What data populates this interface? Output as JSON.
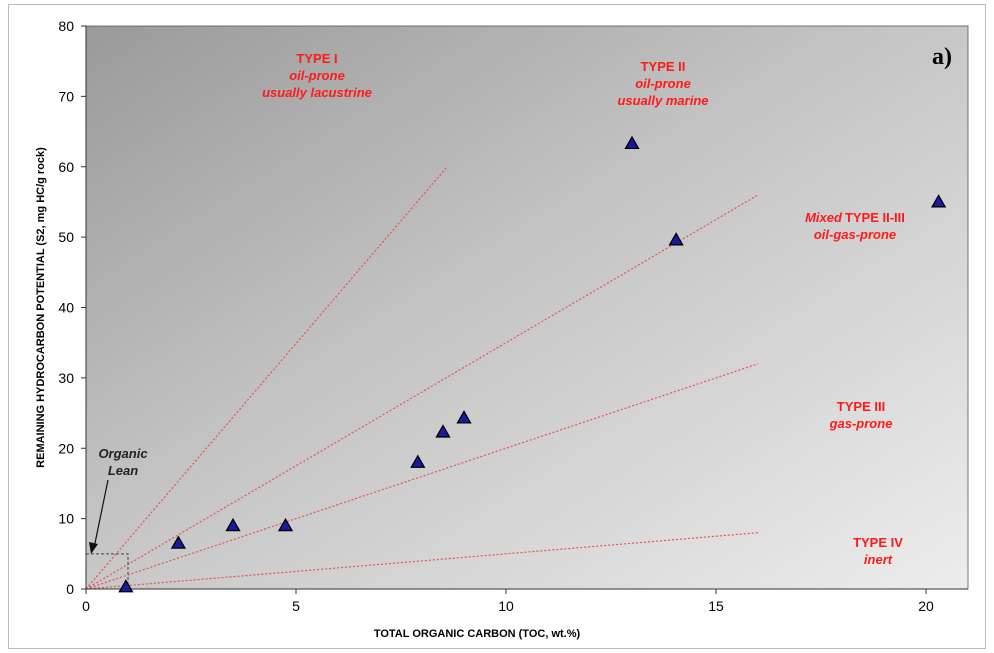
{
  "chart_data": {
    "type": "scatter",
    "panel_label": "a)",
    "xlabel": "TOTAL ORGANIC CARBON (TOC, wt.%)",
    "ylabel": "REMAINING HYDROCARBON POTENTIAL (S2, mg HC/g  rock)",
    "xlim": [
      0,
      21
    ],
    "ylim": [
      0,
      80
    ],
    "xticks": [
      "0",
      "5",
      "10",
      "15",
      "20"
    ],
    "yticks": [
      "0",
      "10",
      "20",
      "30",
      "40",
      "50",
      "60",
      "70",
      "80"
    ],
    "grid": false,
    "marker": "triangle",
    "marker_color": "#1a1aa0",
    "line_color": "#e85050",
    "points": [
      {
        "x": 0.95,
        "y": 0.3
      },
      {
        "x": 2.2,
        "y": 6.5
      },
      {
        "x": 3.5,
        "y": 9.0
      },
      {
        "x": 4.75,
        "y": 9.0
      },
      {
        "x": 7.9,
        "y": 18.0
      },
      {
        "x": 8.5,
        "y": 22.3
      },
      {
        "x": 9.0,
        "y": 24.3
      },
      {
        "x": 13.0,
        "y": 63.3
      },
      {
        "x": 14.05,
        "y": 49.6
      },
      {
        "x": 20.3,
        "y": 55.0
      }
    ],
    "boundary_lines": [
      {
        "from": [
          0,
          0
        ],
        "to": [
          8.6,
          60
        ]
      },
      {
        "from": [
          0,
          0
        ],
        "to": [
          16,
          56
        ]
      },
      {
        "from": [
          0,
          0
        ],
        "to": [
          16,
          32
        ]
      },
      {
        "from": [
          0,
          0
        ],
        "to": [
          16,
          8
        ]
      }
    ],
    "lean_box": {
      "xlim": [
        0,
        1
      ],
      "ylim": [
        0,
        5
      ]
    },
    "annotations": {
      "type1": {
        "title": "TYPE I",
        "line1": "oil-prone",
        "line2": "usually lacustrine"
      },
      "type2": {
        "title": "TYPE II",
        "line1": "oil-prone",
        "line2": "usually marine"
      },
      "type23": {
        "prefix": "Mixed",
        "title": "TYPE II-III",
        "line1": "oil-gas-prone"
      },
      "type3": {
        "title": "TYPE III",
        "line1": "gas-prone"
      },
      "type4": {
        "title": "TYPE IV",
        "line1": "inert"
      },
      "lean": {
        "line1": "Organic",
        "line2": "Lean"
      }
    }
  }
}
